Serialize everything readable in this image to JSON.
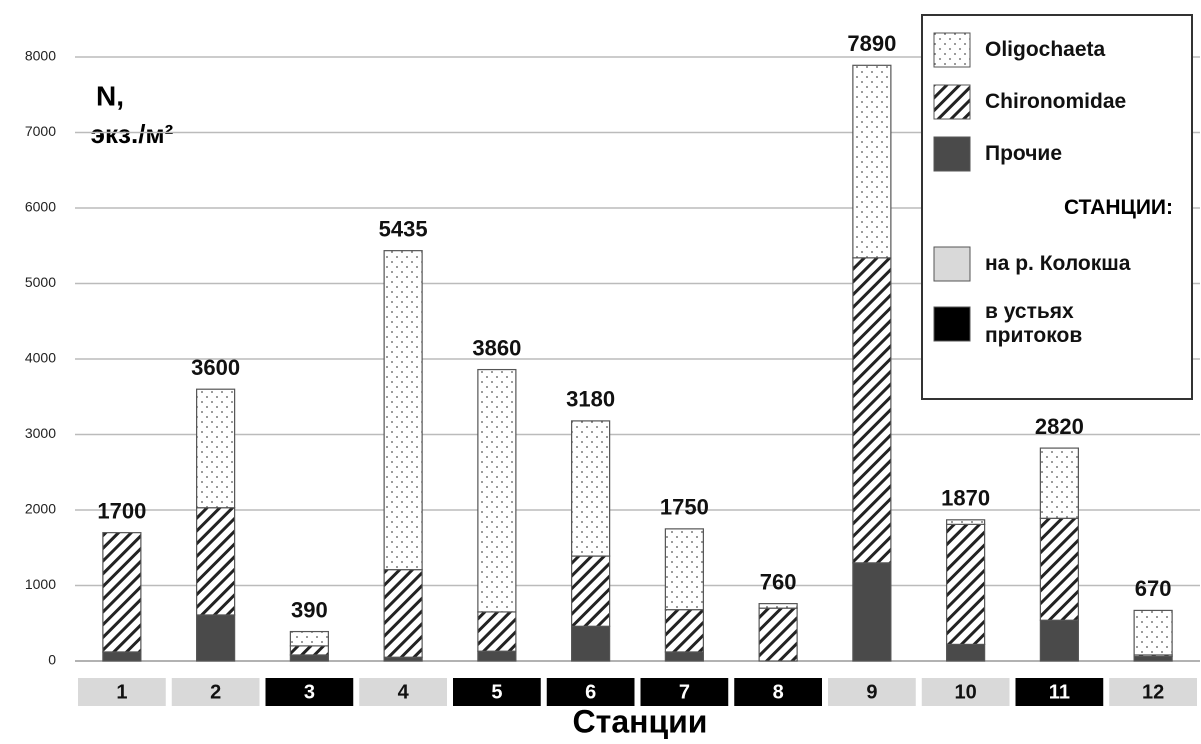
{
  "chart_data": {
    "type": "stacked_bar",
    "y_label_lines": [
      "N,",
      "экз./м²"
    ],
    "x_label": "Станции",
    "categories": [
      "1",
      "2",
      "3",
      "4",
      "5",
      "6",
      "7",
      "8",
      "9",
      "10",
      "11",
      "12"
    ],
    "series": [
      {
        "name": "Прочие",
        "color": "#4a4a4a",
        "pattern": "solid",
        "values": [
          120,
          610,
          80,
          50,
          130,
          460,
          120,
          0,
          1300,
          220,
          540,
          60
        ]
      },
      {
        "name": "Chironomidae",
        "color": "#ffffff",
        "pattern": "hatch",
        "values": [
          1580,
          1420,
          120,
          1160,
          520,
          930,
          560,
          700,
          4040,
          1590,
          1350,
          20
        ]
      },
      {
        "name": "Oligochaeta",
        "color": "#ffffff",
        "pattern": "dots",
        "values": [
          0,
          1570,
          190,
          4225,
          3210,
          1790,
          1070,
          60,
          2550,
          60,
          930,
          590
        ]
      }
    ],
    "totals": [
      1700,
      3600,
      390,
      5435,
      3860,
      3180,
      1750,
      760,
      7890,
      1870,
      2820,
      670
    ],
    "legend_order": [
      2,
      1,
      0
    ],
    "groups_title": "СТАНЦИИ:",
    "groups": [
      {
        "name": "на р. Колокша",
        "color": "#d9d9d9"
      },
      {
        "name": "в устьях притоков",
        "color": "#000000"
      }
    ],
    "category_group": [
      0,
      0,
      1,
      0,
      1,
      1,
      1,
      1,
      0,
      0,
      1,
      0
    ],
    "ylim": [
      0,
      8000
    ],
    "yticks": [
      0,
      1000,
      2000,
      3000,
      4000,
      5000,
      6000,
      7000,
      8000
    ],
    "grid": true,
    "legend": "top-right"
  }
}
